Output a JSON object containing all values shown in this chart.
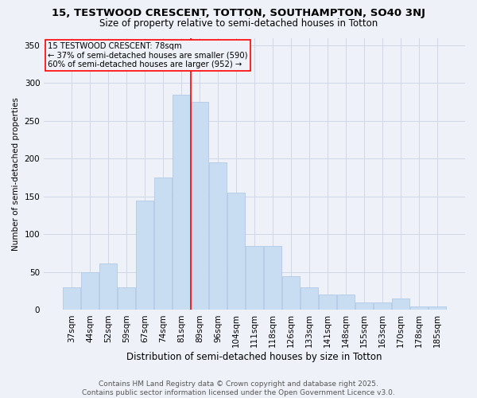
{
  "title": "15, TESTWOOD CRESCENT, TOTTON, SOUTHAMPTON, SO40 3NJ",
  "subtitle": "Size of property relative to semi-detached houses in Totton",
  "xlabel": "Distribution of semi-detached houses by size in Totton",
  "ylabel": "Number of semi-detached properties",
  "categories": [
    "37sqm",
    "44sqm",
    "52sqm",
    "59sqm",
    "67sqm",
    "74sqm",
    "81sqm",
    "89sqm",
    "96sqm",
    "104sqm",
    "111sqm",
    "118sqm",
    "126sqm",
    "133sqm",
    "141sqm",
    "148sqm",
    "155sqm",
    "163sqm",
    "170sqm",
    "178sqm",
    "185sqm"
  ],
  "values": [
    30,
    50,
    62,
    30,
    145,
    175,
    285,
    275,
    195,
    155,
    85,
    85,
    45,
    30,
    20,
    20,
    10,
    10,
    15,
    5,
    5
  ],
  "bar_color": "#c9ddf2",
  "bar_edge_color": "#b0c8e6",
  "vline_color": "red",
  "vline_pos": 6.5,
  "annotation_title": "15 TESTWOOD CRESCENT: 78sqm",
  "annotation_line2": "← 37% of semi-detached houses are smaller (590)",
  "annotation_line3": "60% of semi-detached houses are larger (952) →",
  "annotation_box_color": "red",
  "ylim": [
    0,
    360
  ],
  "yticks": [
    0,
    50,
    100,
    150,
    200,
    250,
    300,
    350
  ],
  "bg_color": "#eef2f8",
  "grid_color": "#d0d8e8",
  "footer_line1": "Contains HM Land Registry data © Crown copyright and database right 2025.",
  "footer_line2": "Contains public sector information licensed under the Open Government Licence v3.0.",
  "title_fontsize": 9.5,
  "subtitle_fontsize": 8.5,
  "xlabel_fontsize": 8.5,
  "ylabel_fontsize": 7.5,
  "tick_fontsize": 7.5,
  "footer_fontsize": 6.5
}
